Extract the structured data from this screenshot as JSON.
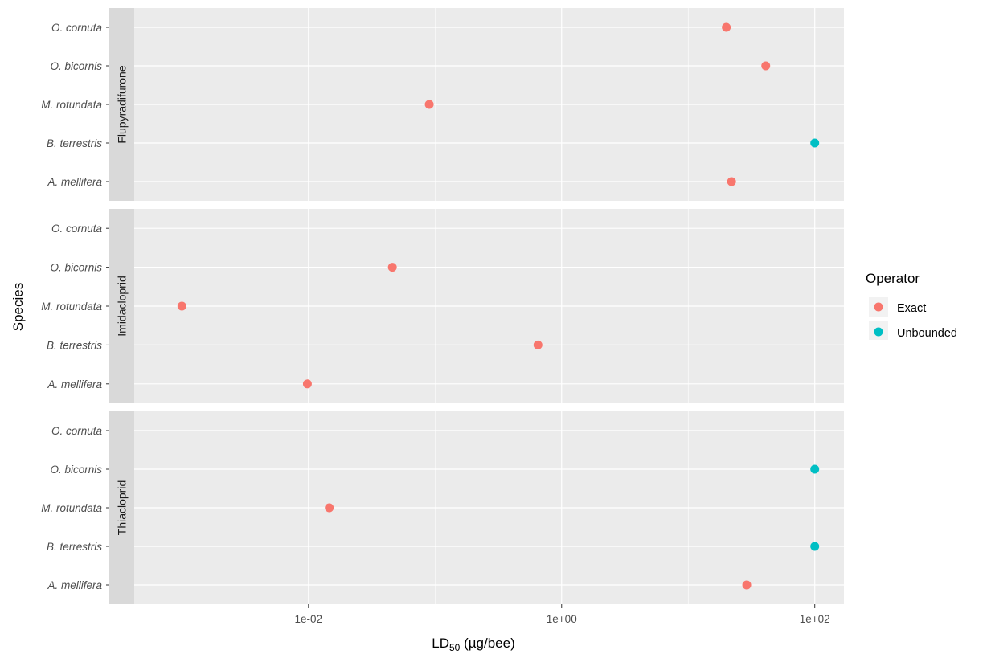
{
  "chart_data": {
    "type": "scatter",
    "xlabel_main": "LD",
    "xlabel_sub": "50",
    "xlabel_unit": " (µg/bee)",
    "ylabel": "Species",
    "x_scale": "log10",
    "xlim": [
      0.00042,
      170
    ],
    "x_ticks": [
      0.01,
      1,
      100
    ],
    "x_tick_labels": [
      "1e-02",
      "1e+00",
      "1e+02"
    ],
    "categories": [
      "O. cornuta",
      "O. bicornis",
      "M. rotundata",
      "B. terrestris",
      "A. mellifera"
    ],
    "grid": true,
    "legend": {
      "title": "Operator",
      "position": "right",
      "entries": [
        {
          "label": "Exact",
          "color": "#F8766D"
        },
        {
          "label": "Unbounded",
          "color": "#00BFC4"
        }
      ]
    },
    "facets": [
      {
        "name": "Flupyradifurone",
        "points": [
          {
            "species": "O. cornuta",
            "x": 20,
            "operator": "Exact"
          },
          {
            "species": "O. bicornis",
            "x": 41,
            "operator": "Exact"
          },
          {
            "species": "M. rotundata",
            "x": 0.09,
            "operator": "Exact"
          },
          {
            "species": "B. terrestris",
            "x": 100,
            "operator": "Unbounded"
          },
          {
            "species": "A. mellifera",
            "x": 22,
            "operator": "Exact"
          }
        ]
      },
      {
        "name": "Imidacloprid",
        "points": [
          {
            "species": "O. bicornis",
            "x": 0.046,
            "operator": "Exact"
          },
          {
            "species": "M. rotundata",
            "x": 0.001,
            "operator": "Exact"
          },
          {
            "species": "B. terrestris",
            "x": 0.65,
            "operator": "Exact"
          },
          {
            "species": "A. mellifera",
            "x": 0.0098,
            "operator": "Exact"
          }
        ]
      },
      {
        "name": "Thiacloprid",
        "points": [
          {
            "species": "O. bicornis",
            "x": 100,
            "operator": "Unbounded"
          },
          {
            "species": "M. rotundata",
            "x": 0.0146,
            "operator": "Exact"
          },
          {
            "species": "B. terrestris",
            "x": 100,
            "operator": "Unbounded"
          },
          {
            "species": "A. mellifera",
            "x": 29,
            "operator": "Exact"
          }
        ]
      }
    ]
  },
  "colors": {
    "panel_background": "#EBEBEB",
    "strip_background": "#D9D9D9",
    "grid": "#FFFFFF",
    "exact": "#F8766D",
    "unbounded": "#00BFC4"
  }
}
